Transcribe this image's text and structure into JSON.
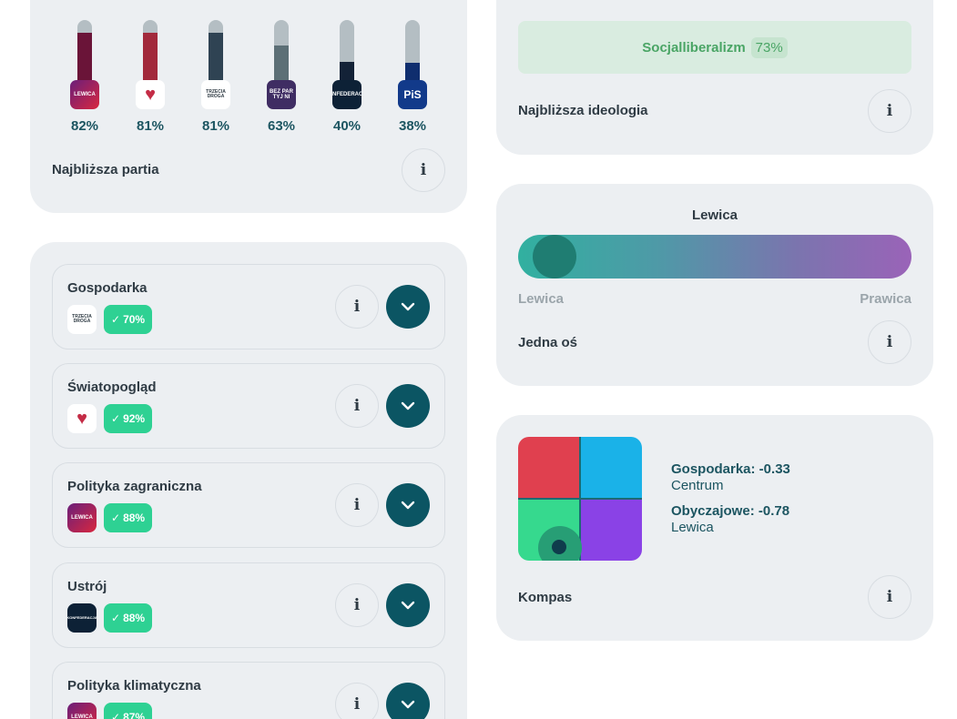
{
  "party_card": {
    "label": "Najbliższa partia",
    "parties": [
      {
        "logo_text": "LEWICA",
        "logo_color": "#8b1e45",
        "fill_color": "#6a1438",
        "value": 82,
        "pct": "82%"
      },
      {
        "logo_text": "♥",
        "logo_color": "#ffffff",
        "fill_color": "#a2293b",
        "value": 81,
        "pct": "81%"
      },
      {
        "logo_text": "TRZECIA DROGA",
        "logo_color": "#ffffff",
        "fill_color": "#2f4353",
        "value": 81,
        "pct": "81%"
      },
      {
        "logo_text": "BEZ PAR TYJ NI",
        "logo_color": "#3f2d63",
        "fill_color": "#5c6f76",
        "value": 63,
        "pct": "63%"
      },
      {
        "logo_text": "KONFEDERACJA",
        "logo_color": "#0d2136",
        "fill_color": "#132237",
        "value": 40,
        "pct": "40%"
      },
      {
        "logo_text": "PiS",
        "logo_color": "#123a8a",
        "fill_color": "#0f2e6e",
        "value": 38,
        "pct": "38%"
      }
    ]
  },
  "ideology_card": {
    "name": "Socjalliberalizm",
    "pct": "73%",
    "label": "Najbliższa ideologia"
  },
  "axis_card": {
    "title": "Lewica",
    "left_label": "Lewica",
    "right_label": "Prawica",
    "label": "Jedna oś"
  },
  "compass_card": {
    "economy_label": "Gospodarka: -0.33",
    "economy_value": "Centrum",
    "social_label": "Obyczajowe: -0.78",
    "social_value": "Lewica",
    "label": "Kompas",
    "colors": {
      "top_left": "#e0404f",
      "top_right": "#1ab2e8",
      "bottom_left": "#36d98e",
      "bottom_right": "#8a42e6"
    }
  },
  "topics": [
    {
      "title": "Gospodarka",
      "logo_text": "TRZECIA DROGA",
      "badge": "70%"
    },
    {
      "title": "Światopogląd",
      "logo_text": "♥",
      "badge": "92%"
    },
    {
      "title": "Polityka zagraniczna",
      "logo_text": "LEWICA",
      "badge": "88%"
    },
    {
      "title": "Ustrój",
      "logo_text": "KONFEDERACJA",
      "badge": "88%"
    },
    {
      "title": "Polityka klimatyczna",
      "logo_text": "LEWICA",
      "badge": "87%"
    }
  ],
  "info_icon": "i",
  "icons": {
    "info": "info-icon",
    "expand": "chevron-down-icon",
    "check": "check-icon"
  }
}
